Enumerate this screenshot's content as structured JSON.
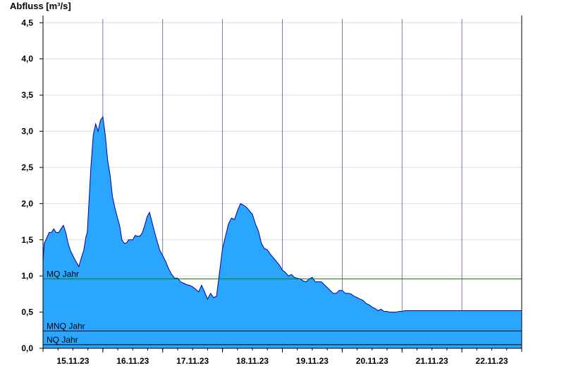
{
  "chart_data": {
    "type": "area",
    "title": "",
    "ylabel": "Abfluss [m³/s]",
    "xlabel": "",
    "ylim": [
      0,
      4.6
    ],
    "y_ticks": [
      "0,0",
      "0,5",
      "1,0",
      "1,5",
      "2,0",
      "2,5",
      "3,0",
      "3,5",
      "4,0",
      "4,5"
    ],
    "y_tick_values": [
      0,
      0.5,
      1.0,
      1.5,
      2.0,
      2.5,
      3.0,
      3.5,
      4.0,
      4.5
    ],
    "x_tick_labels": [
      "15.11.23",
      "16.11.23",
      "17.11.23",
      "18.11.23",
      "19.11.23",
      "20.11.23",
      "21.11.23",
      "22.11.23"
    ],
    "x_range_days": [
      14.0,
      22.0
    ],
    "grid": true,
    "fill_color": "#2aa6ff",
    "line_color": "#0000a0",
    "series": [
      {
        "x": [
          14.0,
          14.02,
          14.06,
          14.1,
          14.14,
          14.18,
          14.22,
          14.26,
          14.3,
          14.34,
          14.38,
          14.42,
          14.46,
          14.5,
          14.55,
          14.6,
          14.64,
          14.68,
          14.72,
          14.74,
          14.76,
          14.8,
          14.84,
          14.88,
          14.92,
          14.96,
          15.0,
          15.04,
          15.08,
          15.12,
          15.16,
          15.2,
          15.24,
          15.28,
          15.3,
          15.32,
          15.35,
          15.37,
          15.4,
          15.43,
          15.46,
          15.5,
          15.54,
          15.58,
          15.62,
          15.66,
          15.7,
          15.74,
          15.78,
          15.82,
          15.86,
          15.9,
          15.95,
          16.0,
          16.05,
          16.1,
          16.15,
          16.2,
          16.25,
          16.3,
          16.35,
          16.4,
          16.45,
          16.5,
          16.55,
          16.6,
          16.65,
          16.7,
          16.75,
          16.8,
          16.85,
          16.9,
          16.95,
          17.0,
          17.05,
          17.1,
          17.15,
          17.2,
          17.25,
          17.3,
          17.35,
          17.4,
          17.45,
          17.5,
          17.55,
          17.6,
          17.65,
          17.7,
          17.75,
          17.8,
          17.85,
          17.9,
          17.95,
          18.0,
          18.05,
          18.1,
          18.15,
          18.2,
          18.25,
          18.3,
          18.35,
          18.4,
          18.45,
          18.5,
          18.55,
          18.6,
          18.65,
          18.7,
          18.75,
          18.8,
          18.85,
          18.9,
          18.95,
          19.0,
          19.05,
          19.1,
          19.15,
          19.2,
          19.25,
          19.3,
          19.35,
          19.4,
          19.45,
          19.5,
          19.55,
          19.6,
          19.65,
          19.7,
          19.75,
          19.8,
          19.85,
          19.9,
          19.95,
          20.0,
          20.05,
          20.1,
          20.15,
          20.2,
          20.3,
          20.4,
          20.5,
          20.6,
          20.7,
          20.8,
          20.9,
          21.0,
          21.1,
          21.2,
          21.3,
          21.4,
          21.5,
          21.6,
          21.7,
          21.8,
          21.9,
          21.95,
          22.0
        ],
        "values": [
          1.2,
          1.45,
          1.52,
          1.6,
          1.6,
          1.65,
          1.6,
          1.6,
          1.65,
          1.7,
          1.6,
          1.45,
          1.35,
          1.28,
          1.2,
          1.13,
          1.25,
          1.35,
          1.55,
          1.6,
          1.9,
          2.5,
          2.95,
          3.1,
          3.0,
          3.15,
          3.2,
          2.95,
          2.6,
          2.4,
          2.1,
          1.95,
          1.82,
          1.7,
          1.6,
          1.5,
          1.46,
          1.45,
          1.46,
          1.5,
          1.5,
          1.5,
          1.56,
          1.55,
          1.55,
          1.6,
          1.7,
          1.82,
          1.88,
          1.75,
          1.62,
          1.5,
          1.36,
          1.28,
          1.2,
          1.1,
          1.02,
          0.97,
          0.97,
          0.92,
          0.9,
          0.88,
          0.87,
          0.85,
          0.82,
          0.78,
          0.87,
          0.78,
          0.68,
          0.76,
          0.7,
          0.72,
          1.05,
          1.38,
          1.55,
          1.72,
          1.8,
          1.78,
          1.9,
          2.0,
          1.98,
          1.95,
          1.9,
          1.85,
          1.72,
          1.62,
          1.45,
          1.38,
          1.36,
          1.3,
          1.25,
          1.2,
          1.15,
          1.08,
          1.05,
          1.0,
          1.02,
          0.98,
          0.97,
          0.96,
          0.93,
          0.92,
          0.96,
          0.98,
          0.92,
          0.92,
          0.92,
          0.88,
          0.84,
          0.8,
          0.76,
          0.76,
          0.8,
          0.8,
          0.76,
          0.76,
          0.75,
          0.72,
          0.7,
          0.68,
          0.66,
          0.62,
          0.6,
          0.57,
          0.55,
          0.52,
          0.54,
          0.51,
          0.51,
          0.5,
          0.5,
          0.5,
          0.51,
          0.51,
          0.52,
          0.52,
          0.52,
          0.52,
          0.52,
          0.52,
          0.52,
          0.52,
          0.52,
          0.52,
          0.52,
          0.52,
          0.52,
          0.52,
          0.52,
          0.52,
          0.52,
          0.52,
          0.52,
          0.52,
          0.52,
          0.52,
          0.52
        ]
      }
    ],
    "reference_lines": [
      {
        "label": "MQ Jahr",
        "value": 0.96,
        "color": "#007700"
      },
      {
        "label": "MNQ Jahr",
        "value": 0.24,
        "color": "#000000"
      },
      {
        "label": "NQ Jahr",
        "value": 0.05,
        "color": "#000000"
      }
    ]
  }
}
